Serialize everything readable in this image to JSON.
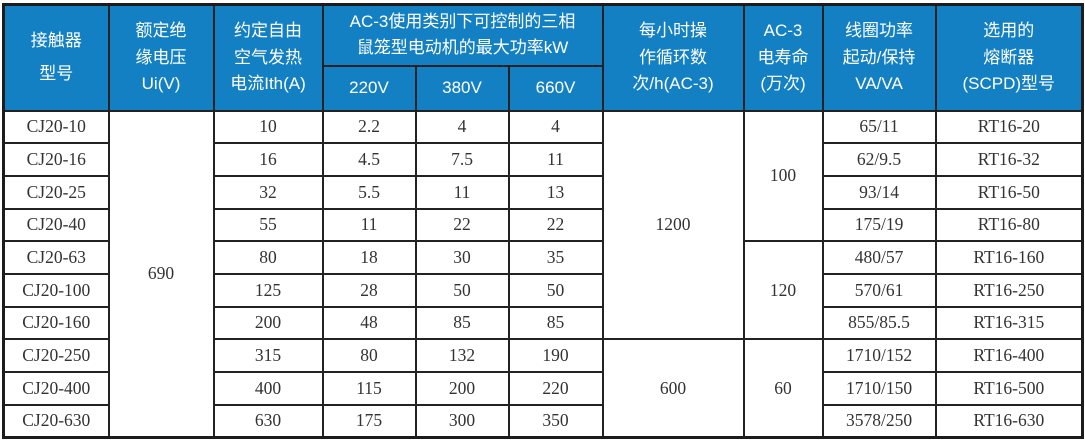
{
  "colors": {
    "header_bg": "#1480c4",
    "header_text": "#ffffff",
    "border": "#222222",
    "body_text": "#333333"
  },
  "table": {
    "header": {
      "model": "接触器\n型号",
      "ui": "额定绝\n缘电压\nUi(V)",
      "ith": "约定自由\n空气发热\n电流Ith(A)",
      "kw_group": "AC-3使用类别下可控制的三相\n鼠笼型电动机的最大功率kW",
      "kw220": "220V",
      "kw380": "380V",
      "kw660": "660V",
      "cycles": "每小时操\n作循环数\n次/h(AC-3)",
      "life": "AC-3\n电寿命\n(万次)",
      "coil": "线圈功率\n起动/保持\nVA/VA",
      "fuse": "选用的\n熔断器\n(SCPD)型号"
    },
    "rows": [
      {
        "model": "CJ20-10",
        "ith": "10",
        "kw220": "2.2",
        "kw380": "4",
        "kw660": "4",
        "coil": "65/11",
        "fuse": "RT16-20"
      },
      {
        "model": "CJ20-16",
        "ith": "16",
        "kw220": "4.5",
        "kw380": "7.5",
        "kw660": "11",
        "coil": "62/9.5",
        "fuse": "RT16-32"
      },
      {
        "model": "CJ20-25",
        "ith": "32",
        "kw220": "5.5",
        "kw380": "11",
        "kw660": "13",
        "coil": "93/14",
        "fuse": "RT16-50"
      },
      {
        "model": "CJ20-40",
        "ith": "55",
        "kw220": "11",
        "kw380": "22",
        "kw660": "22",
        "coil": "175/19",
        "fuse": "RT16-80"
      },
      {
        "model": "CJ20-63",
        "ith": "80",
        "kw220": "18",
        "kw380": "30",
        "kw660": "35",
        "coil": "480/57",
        "fuse": "RT16-160"
      },
      {
        "model": "CJ20-100",
        "ith": "125",
        "kw220": "28",
        "kw380": "50",
        "kw660": "50",
        "coil": "570/61",
        "fuse": "RT16-250"
      },
      {
        "model": "CJ20-160",
        "ith": "200",
        "kw220": "48",
        "kw380": "85",
        "kw660": "85",
        "coil": "855/85.5",
        "fuse": "RT16-315"
      },
      {
        "model": "CJ20-250",
        "ith": "315",
        "kw220": "80",
        "kw380": "132",
        "kw660": "190",
        "coil": "1710/152",
        "fuse": "RT16-400"
      },
      {
        "model": "CJ20-400",
        "ith": "400",
        "kw220": "115",
        "kw380": "200",
        "kw660": "220",
        "coil": "1710/150",
        "fuse": "RT16-500"
      },
      {
        "model": "CJ20-630",
        "ith": "630",
        "kw220": "175",
        "kw380": "300",
        "kw660": "350",
        "coil": "3578/250",
        "fuse": "RT16-630"
      }
    ],
    "merges": [
      {
        "col": "ui",
        "row": 0,
        "span": 10,
        "value": "690"
      },
      {
        "col": "cycles",
        "row": 0,
        "span": 7,
        "value": "1200"
      },
      {
        "col": "cycles",
        "row": 7,
        "span": 3,
        "value": "600"
      },
      {
        "col": "life",
        "row": 0,
        "span": 4,
        "value": "100"
      },
      {
        "col": "life",
        "row": 4,
        "span": 3,
        "value": "120"
      },
      {
        "col": "life",
        "row": 7,
        "span": 3,
        "value": "60"
      }
    ],
    "cell_names": {
      "model": "model-cell",
      "ui": "rated-insulation-voltage-cell",
      "ith": "thermal-current-cell",
      "kw220": "kw-220v-cell",
      "kw380": "kw-380v-cell",
      "kw660": "kw-660v-cell",
      "cycles": "cycles-per-hour-cell",
      "life": "electrical-life-cell",
      "coil": "coil-power-cell",
      "fuse": "fuse-model-cell"
    }
  }
}
